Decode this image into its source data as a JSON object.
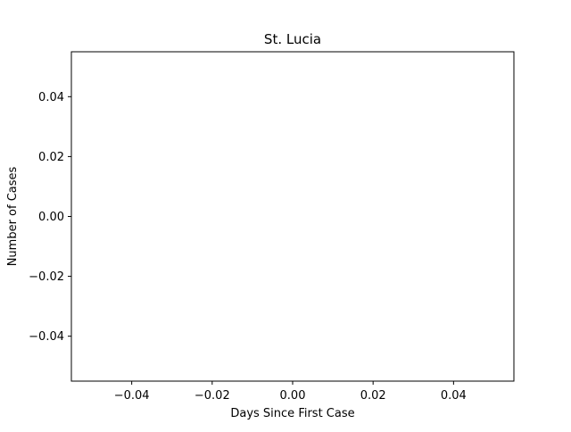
{
  "chart_data": {
    "type": "line",
    "title": "St. Lucia",
    "xlabel": "Days Since First Case",
    "ylabel": "Number of Cases",
    "xlim": [
      -0.055,
      0.055
    ],
    "ylim": [
      -0.055,
      0.055
    ],
    "x_ticks": [
      -0.04,
      -0.02,
      0.0,
      0.02,
      0.04
    ],
    "x_tick_labels": [
      "−0.04",
      "−0.02",
      "0.00",
      "0.02",
      "0.04"
    ],
    "y_ticks": [
      -0.04,
      -0.02,
      0.0,
      0.02,
      0.04
    ],
    "y_tick_labels": [
      "−0.04",
      "−0.02",
      "0.00",
      "0.02",
      "0.04"
    ],
    "grid": false,
    "series": [
      {
        "x": [],
        "y": []
      }
    ]
  }
}
